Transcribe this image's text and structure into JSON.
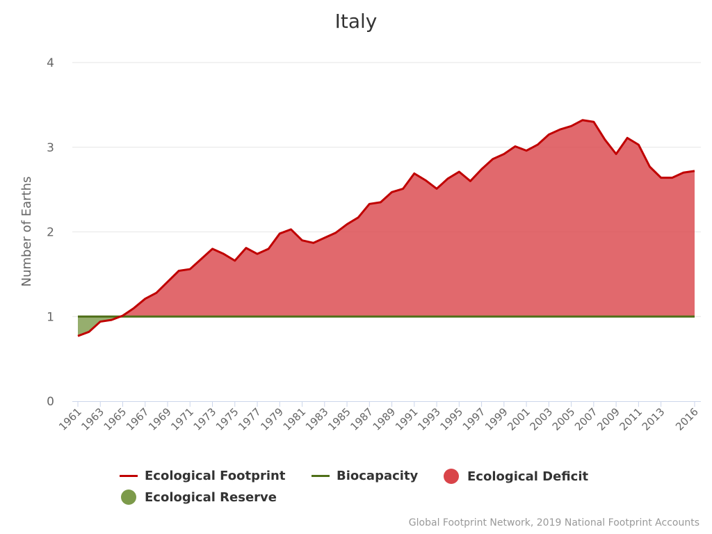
{
  "chart_data": {
    "type": "area",
    "title": "Italy",
    "ylabel": "Number of Earths",
    "xlabel": "",
    "ylim": [
      0,
      4
    ],
    "yticks": [
      0,
      1,
      2,
      3,
      4
    ],
    "xlim": [
      1961,
      2016
    ],
    "xtick_labels": [
      "1961",
      "1963",
      "1965",
      "1967",
      "1969",
      "1971",
      "1973",
      "1975",
      "1977",
      "1979",
      "1981",
      "1983",
      "1985",
      "1987",
      "1989",
      "1991",
      "1993",
      "1995",
      "1997",
      "1999",
      "2001",
      "2003",
      "2005",
      "2007",
      "2009",
      "2011",
      "2013",
      "2016"
    ],
    "grid": true,
    "legend_position": "bottom",
    "x": [
      1961,
      1962,
      1963,
      1964,
      1965,
      1966,
      1967,
      1968,
      1969,
      1970,
      1971,
      1972,
      1973,
      1974,
      1975,
      1976,
      1977,
      1978,
      1979,
      1980,
      1981,
      1982,
      1983,
      1984,
      1985,
      1986,
      1987,
      1988,
      1989,
      1990,
      1991,
      1992,
      1993,
      1994,
      1995,
      1996,
      1997,
      1998,
      1999,
      2000,
      2001,
      2002,
      2003,
      2004,
      2005,
      2006,
      2007,
      2008,
      2009,
      2010,
      2011,
      2012,
      2013,
      2014,
      2015,
      2016
    ],
    "series": [
      {
        "name": "Ecological Footprint",
        "type": "line",
        "color": "#c00000",
        "values": [
          0.77,
          0.82,
          0.94,
          0.96,
          1.01,
          1.1,
          1.21,
          1.28,
          1.41,
          1.54,
          1.56,
          1.68,
          1.8,
          1.74,
          1.66,
          1.81,
          1.74,
          1.8,
          1.98,
          2.03,
          1.9,
          1.87,
          1.93,
          1.99,
          2.09,
          2.17,
          2.33,
          2.35,
          2.47,
          2.51,
          2.69,
          2.61,
          2.51,
          2.63,
          2.71,
          2.6,
          2.74,
          2.86,
          2.92,
          3.01,
          2.96,
          3.03,
          3.15,
          3.21,
          3.25,
          3.32,
          3.3,
          3.09,
          2.92,
          3.11,
          3.03,
          2.77,
          2.64,
          2.64,
          2.7,
          2.72
        ]
      },
      {
        "name": "Biocapacity",
        "type": "line",
        "color": "#4f6f18",
        "values": [
          1.0,
          1.0,
          1.0,
          1.0,
          1.0,
          1.0,
          1.0,
          1.0,
          1.0,
          1.0,
          1.0,
          1.0,
          1.0,
          1.0,
          1.0,
          1.0,
          1.0,
          1.0,
          1.0,
          1.0,
          1.0,
          1.0,
          1.0,
          1.0,
          1.0,
          1.0,
          1.0,
          1.0,
          1.0,
          1.0,
          1.0,
          1.0,
          1.0,
          1.0,
          1.0,
          1.0,
          1.0,
          1.0,
          1.0,
          1.0,
          1.0,
          1.0,
          1.0,
          1.0,
          1.0,
          1.0,
          1.0,
          1.0,
          1.0,
          1.0,
          1.0,
          1.0,
          1.0,
          1.0,
          1.0,
          1.0
        ]
      },
      {
        "name": "Ecological Deficit",
        "type": "area-between",
        "color": "#d94449"
      },
      {
        "name": "Ecological Reserve",
        "type": "area-between",
        "color": "#7c9a4a"
      }
    ]
  },
  "legend": {
    "footprint": "Ecological Footprint",
    "biocapacity": "Biocapacity",
    "deficit": "Ecological Deficit",
    "reserve": "Ecological Reserve"
  },
  "colors": {
    "footprint": "#c00000",
    "biocapacity": "#4f6f18",
    "deficit_fill": "#d94449",
    "reserve_fill": "#7c9a4a",
    "deficit_dot": "#d94449",
    "reserve_dot": "#7c9a4a"
  },
  "credits": "Global Footprint Network, 2019 National Footprint Accounts"
}
